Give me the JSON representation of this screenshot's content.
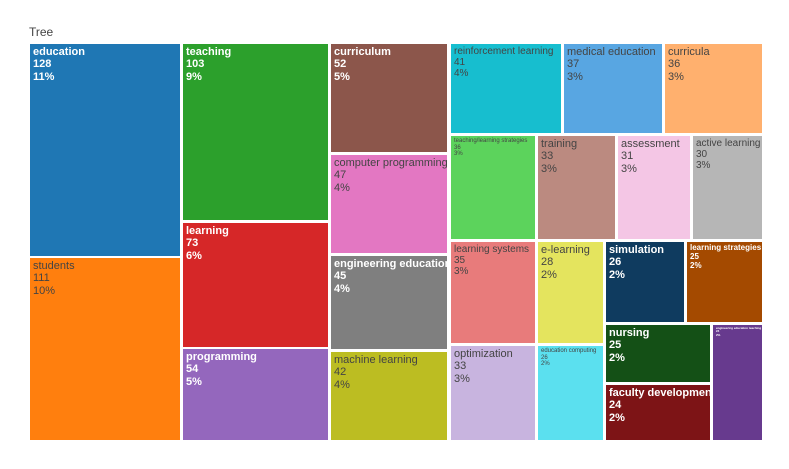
{
  "chart_data": {
    "type": "treemap",
    "title": "Tree",
    "items": [
      {
        "label": "education",
        "value": 128,
        "percent": "11%",
        "color": "#1f77b4",
        "text_color": "#ffffff",
        "bold": true
      },
      {
        "label": "students",
        "value": 111,
        "percent": "10%",
        "color": "#ff7f0e",
        "text_color": "#444444",
        "bold": false
      },
      {
        "label": "teaching",
        "value": 103,
        "percent": "9%",
        "color": "#2ca02c",
        "text_color": "#ffffff",
        "bold": true
      },
      {
        "label": "learning",
        "value": 73,
        "percent": "6%",
        "color": "#d62728",
        "text_color": "#ffffff",
        "bold": true
      },
      {
        "label": "programming",
        "value": 54,
        "percent": "5%",
        "color": "#9467bd",
        "text_color": "#ffffff",
        "bold": true
      },
      {
        "label": "curriculum",
        "value": 52,
        "percent": "5%",
        "color": "#8c564b",
        "text_color": "#ffffff",
        "bold": true
      },
      {
        "label": "computer programming",
        "value": 47,
        "percent": "4%",
        "color": "#e377c2",
        "text_color": "#444444",
        "bold": false
      },
      {
        "label": "engineering education",
        "value": 45,
        "percent": "4%",
        "color": "#7f7f7f",
        "text_color": "#ffffff",
        "bold": true
      },
      {
        "label": "machine learning",
        "value": 42,
        "percent": "4%",
        "color": "#bcbd22",
        "text_color": "#444444",
        "bold": false
      },
      {
        "label": "reinforcement learning",
        "value": 41,
        "percent": "4%",
        "color": "#17becf",
        "text_color": "#444444",
        "bold": false
      },
      {
        "label": "medical education",
        "value": 37,
        "percent": "3%",
        "color": "#58a6e2",
        "text_color": "#444444",
        "bold": false
      },
      {
        "label": "curricula",
        "value": 36,
        "percent": "3%",
        "color": "#ffb06e",
        "text_color": "#444444",
        "bold": false
      },
      {
        "label": "teaching/learning strategies",
        "value": 36,
        "percent": "3%",
        "color": "#5cd35c",
        "text_color": "#444444",
        "bold": false
      },
      {
        "label": "training",
        "value": 33,
        "percent": "3%",
        "color": "#bb8a80",
        "text_color": "#444444",
        "bold": false
      },
      {
        "label": "assessment",
        "value": 31,
        "percent": "3%",
        "color": "#f4c6e5",
        "text_color": "#444444",
        "bold": false
      },
      {
        "label": "active learning",
        "value": 30,
        "percent": "3%",
        "color": "#b6b6b6",
        "text_color": "#444444",
        "bold": false
      },
      {
        "label": "learning systems",
        "value": 35,
        "percent": "3%",
        "color": "#e87b7b",
        "text_color": "#444444",
        "bold": false
      },
      {
        "label": "e-learning",
        "value": 28,
        "percent": "2%",
        "color": "#e4e45e",
        "text_color": "#444444",
        "bold": false
      },
      {
        "label": "simulation",
        "value": 26,
        "percent": "2%",
        "color": "#0f3b5f",
        "text_color": "#ffffff",
        "bold": true
      },
      {
        "label": "learning strategies",
        "value": 25,
        "percent": "2%",
        "color": "#a44a00",
        "text_color": "#ffffff",
        "bold": true
      },
      {
        "label": "optimization",
        "value": 33,
        "percent": "3%",
        "color": "#c8b4df",
        "text_color": "#444444",
        "bold": false
      },
      {
        "label": "education computing",
        "value": 26,
        "percent": "2%",
        "color": "#5be0ef",
        "text_color": "#444444",
        "bold": false
      },
      {
        "label": "nursing",
        "value": 25,
        "percent": "2%",
        "color": "#145016",
        "text_color": "#ffffff",
        "bold": true
      },
      {
        "label": "engineering education teaching",
        "value": 24,
        "percent": "2%",
        "color": "#673a8e",
        "text_color": "#ffffff",
        "bold": true
      },
      {
        "label": "faculty development",
        "value": 24,
        "percent": "2%",
        "color": "#7d1416",
        "text_color": "#ffffff",
        "bold": true
      }
    ]
  }
}
